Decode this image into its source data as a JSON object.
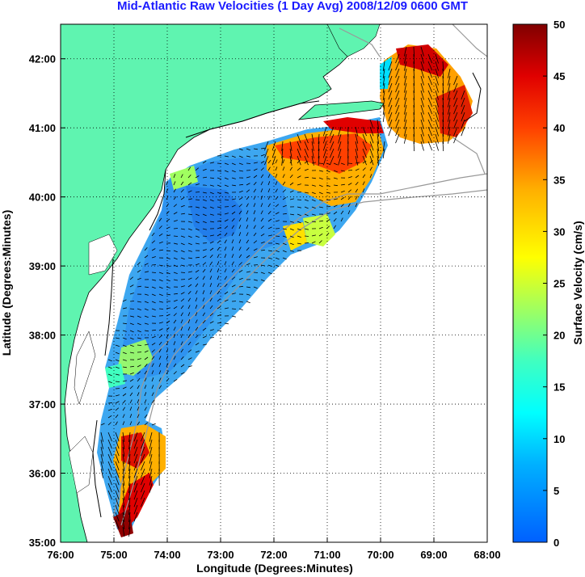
{
  "title": "Mid-Atlantic Raw Velocities (1 Day Avg) 2008/12/09 0600 GMT",
  "map": {
    "xlabel": "Longitude (Degrees:Minutes)",
    "ylabel": "Latitude (Degrees:Minutes)",
    "x_ticks": [
      "76:00",
      "75:00",
      "74:00",
      "73:00",
      "72:00",
      "71:00",
      "70:00",
      "69:00",
      "68:00"
    ],
    "y_ticks": [
      "35:00",
      "36:00",
      "37:00",
      "38:00",
      "39:00",
      "40:00",
      "41:00",
      "42:00"
    ],
    "lon_range": [
      -76,
      -68
    ],
    "lat_range": [
      35,
      42.5
    ],
    "grid": true,
    "land_color": "#5ff4b0",
    "water_color": "#ffffff",
    "coast_color": "#000000",
    "isobath_color": "#999999"
  },
  "colorbar": {
    "label": "Surface Velocity (cm/s)",
    "ticks": [
      "0",
      "5",
      "10",
      "15",
      "20",
      "25",
      "30",
      "35",
      "40",
      "45",
      "50"
    ],
    "range": [
      0,
      50
    ],
    "colormap": "jet"
  }
}
